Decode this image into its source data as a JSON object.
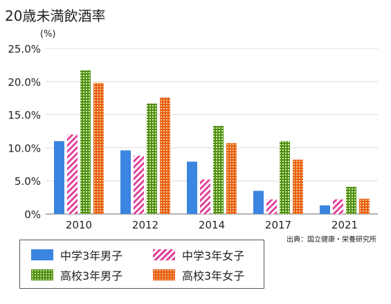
{
  "chart_data": {
    "type": "bar",
    "title": "20歳未満飲酒率",
    "ylabel": "(%)",
    "xlabel": "",
    "categories": [
      "2010",
      "2012",
      "2014",
      "2017",
      "2021"
    ],
    "ylim": [
      0,
      25
    ],
    "yticks": [
      "0%",
      "5.0%",
      "10.0%",
      "15.0%",
      "20.0%",
      "25.0%"
    ],
    "ytick_values": [
      0,
      5,
      10,
      15,
      20,
      25
    ],
    "grid": true,
    "source": "出典：国立健康・栄養研究所",
    "legend_position": "bottom-left",
    "series": [
      {
        "name": "中学3年男子",
        "values": [
          11.0,
          9.6,
          7.9,
          3.5,
          1.3
        ],
        "color": "#3a85e0",
        "pattern": "solid"
      },
      {
        "name": "中学3年女子",
        "values": [
          12.0,
          8.8,
          5.2,
          2.2,
          2.2
        ],
        "color": "#e0429c",
        "pattern": "hatch"
      },
      {
        "name": "高校3年男子",
        "values": [
          21.7,
          16.7,
          13.3,
          11.0,
          4.1
        ],
        "color": "#5fa020",
        "pattern": "dots"
      },
      {
        "name": "高校3年女子",
        "values": [
          19.8,
          17.6,
          10.7,
          8.2,
          2.3
        ],
        "color": "#e86010",
        "pattern": "dense-dots"
      }
    ]
  }
}
